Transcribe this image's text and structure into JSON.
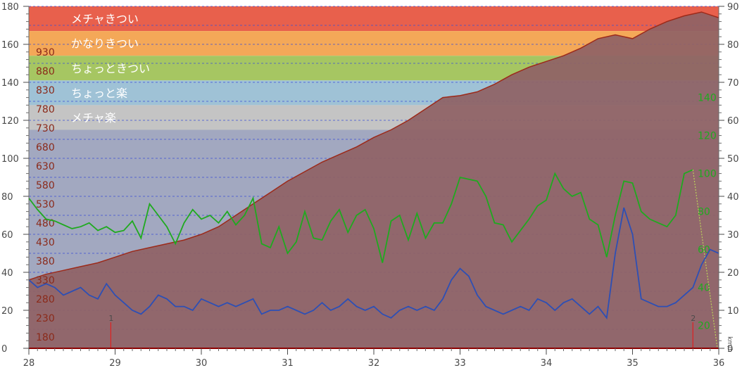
{
  "chart_data": {
    "type": "area",
    "x_axis": {
      "min": 28,
      "max": 36,
      "ticks": [
        "28",
        "29",
        "30",
        "31",
        "32",
        "33",
        "34",
        "35",
        "36"
      ]
    },
    "left_axis": {
      "min": 0,
      "max": 180,
      "ticks": [
        "0",
        "20",
        "40",
        "60",
        "80",
        "100",
        "120",
        "140",
        "160",
        "180"
      ]
    },
    "right_axis": {
      "min": 0,
      "max": 90,
      "ticks": [
        "0",
        "10",
        "20",
        "30",
        "40",
        "50",
        "60",
        "70",
        "80",
        "90"
      ],
      "unit": "km/h"
    },
    "altitude_labels": [
      "180",
      "230",
      "280",
      "330",
      "380",
      "430",
      "480",
      "530",
      "580",
      "630",
      "680",
      "730",
      "780",
      "830",
      "880",
      "930"
    ],
    "heart_rate_labels": [
      "20",
      "40",
      "60",
      "80",
      "100",
      "120",
      "140"
    ],
    "intensity_bands": [
      {
        "label": "メチャきつい",
        "from": 167,
        "to": 180,
        "color": "#e8604c"
      },
      {
        "label": "かなりきつい",
        "from": 154,
        "to": 167,
        "color": "#f4a858"
      },
      {
        "label": "ちょっときつい",
        "from": 141,
        "to": 154,
        "color": "#a6c662"
      },
      {
        "label": "ちょっと楽",
        "from": 128,
        "to": 141,
        "color": "#9fc2d6"
      },
      {
        "label": "メチャ楽",
        "from": 115,
        "to": 128,
        "color": "#c4c4c4"
      },
      {
        "label": "",
        "from": 0,
        "to": 115,
        "color": "#a2a8c0"
      }
    ],
    "markers": [
      {
        "label": "1",
        "x": 28.95
      },
      {
        "label": "2",
        "x": 35.7
      }
    ],
    "series": [
      {
        "name": "altitude",
        "color": "#9c2a1a",
        "fill": "#8f6265",
        "x": [
          28.0,
          28.2,
          28.4,
          28.6,
          28.8,
          29.0,
          29.2,
          29.4,
          29.6,
          29.8,
          30.0,
          30.2,
          30.4,
          30.6,
          30.8,
          31.0,
          31.2,
          31.4,
          31.6,
          31.8,
          32.0,
          32.2,
          32.4,
          32.6,
          32.8,
          33.0,
          33.2,
          33.4,
          33.6,
          33.8,
          34.0,
          34.2,
          34.4,
          34.6,
          34.8,
          35.0,
          35.2,
          35.4,
          35.6,
          35.8,
          36.0
        ],
        "values": [
          36,
          39,
          41,
          43,
          45,
          48,
          51,
          53,
          55,
          57,
          60,
          64,
          70,
          76,
          82,
          88,
          93,
          98,
          102,
          106,
          111,
          115,
          120,
          126,
          132,
          133,
          135,
          139,
          144,
          148,
          151,
          154,
          158,
          163,
          165,
          163,
          168,
          172,
          175,
          177,
          174
        ]
      },
      {
        "name": "heart rate",
        "color": "#1faa1f",
        "x": [
          28.0,
          28.1,
          28.2,
          28.3,
          28.4,
          28.5,
          28.6,
          28.7,
          28.8,
          28.9,
          29.0,
          29.1,
          29.2,
          29.3,
          29.4,
          29.5,
          29.6,
          29.7,
          29.8,
          29.9,
          30.0,
          30.1,
          30.2,
          30.3,
          30.4,
          30.5,
          30.6,
          30.7,
          30.8,
          30.9,
          31.0,
          31.1,
          31.2,
          31.3,
          31.4,
          31.5,
          31.6,
          31.7,
          31.8,
          31.9,
          32.0,
          32.1,
          32.2,
          32.3,
          32.4,
          32.5,
          32.6,
          32.7,
          32.8,
          32.9,
          33.0,
          33.1,
          33.2,
          33.3,
          33.4,
          33.5,
          33.6,
          33.7,
          33.8,
          33.9,
          34.0,
          34.1,
          34.2,
          34.3,
          34.4,
          34.5,
          34.6,
          34.7,
          34.8,
          34.9,
          35.0,
          35.1,
          35.2,
          35.3,
          35.4,
          35.5,
          35.6,
          35.7
        ],
        "values": [
          79,
          73,
          68,
          67,
          65,
          63,
          64,
          66,
          62,
          64,
          61,
          62,
          67,
          58,
          76,
          70,
          64,
          55,
          66,
          73,
          68,
          70,
          66,
          72,
          65,
          70,
          79,
          55,
          53,
          64,
          50,
          56,
          72,
          58,
          57,
          67,
          73,
          61,
          70,
          73,
          63,
          45,
          67,
          70,
          57,
          71,
          58,
          66,
          66,
          76,
          90,
          89,
          88,
          80,
          66,
          65,
          56,
          62,
          68,
          75,
          78,
          92,
          84,
          80,
          82,
          68,
          65,
          48,
          70,
          88,
          87,
          72,
          68,
          66,
          64,
          70,
          92,
          94
        ]
      },
      {
        "name": "speed",
        "color": "#2d4fb5",
        "x": [
          28.0,
          28.1,
          28.2,
          28.3,
          28.4,
          28.5,
          28.6,
          28.7,
          28.8,
          28.9,
          29.0,
          29.1,
          29.2,
          29.3,
          29.4,
          29.5,
          29.6,
          29.7,
          29.8,
          29.9,
          30.0,
          30.1,
          30.2,
          30.3,
          30.4,
          30.5,
          30.6,
          30.7,
          30.8,
          30.9,
          31.0,
          31.1,
          31.2,
          31.3,
          31.4,
          31.5,
          31.6,
          31.7,
          31.8,
          31.9,
          32.0,
          32.1,
          32.2,
          32.3,
          32.4,
          32.5,
          32.6,
          32.7,
          32.8,
          32.9,
          33.0,
          33.1,
          33.2,
          33.3,
          33.4,
          33.5,
          33.6,
          33.7,
          33.8,
          33.9,
          34.0,
          34.1,
          34.2,
          34.3,
          34.4,
          34.5,
          34.6,
          34.7,
          34.8,
          34.9,
          35.0,
          35.1,
          35.2,
          35.3,
          35.4,
          35.5,
          35.6,
          35.7,
          35.8,
          35.9,
          36.0
        ],
        "values": [
          18,
          16,
          17,
          16,
          14,
          15,
          16,
          14,
          13,
          17,
          14,
          12,
          10,
          9,
          11,
          14,
          13,
          11,
          11,
          10,
          13,
          12,
          11,
          12,
          11,
          12,
          13,
          9,
          10,
          10,
          11,
          10,
          9,
          10,
          12,
          10,
          11,
          13,
          11,
          10,
          11,
          9,
          8,
          10,
          11,
          10,
          11,
          10,
          13,
          18,
          21,
          19,
          14,
          11,
          10,
          9,
          10,
          11,
          10,
          13,
          12,
          10,
          12,
          13,
          11,
          9,
          11,
          8,
          25,
          37,
          30,
          13,
          12,
          11,
          11,
          12,
          14,
          16,
          22,
          26,
          25
        ]
      }
    ]
  }
}
